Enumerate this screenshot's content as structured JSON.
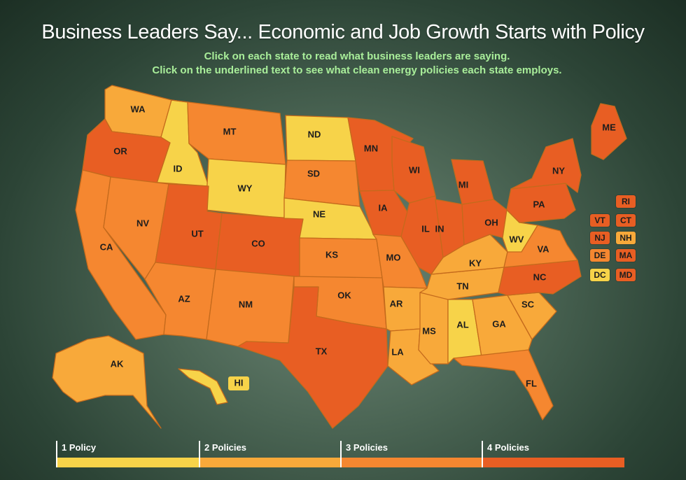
{
  "title": "Business Leaders Say... Economic and Job Growth Starts with Policy",
  "subtitle_1": "Click on each state to read what business leaders are saying.",
  "subtitle_2": "Click on the underlined text to see what clean energy policies each state employs.",
  "colors": {
    "1": "#f7d349",
    "2": "#f8a93a",
    "3": "#f58730",
    "4": "#e85e23"
  },
  "legend": [
    {
      "label": "1 Policy",
      "level": 1
    },
    {
      "label": "2 Policies",
      "level": 2
    },
    {
      "label": "3 Policies",
      "level": 3
    },
    {
      "label": "4 Policies",
      "level": 4
    }
  ],
  "states": {
    "WA": 2,
    "OR": 4,
    "CA": 3,
    "ID": 1,
    "NV": 3,
    "MT": 3,
    "WY": 1,
    "UT": 4,
    "AZ": 3,
    "CO": 4,
    "NM": 3,
    "ND": 1,
    "SD": 3,
    "NE": 1,
    "KS": 3,
    "OK": 3,
    "TX": 4,
    "MN": 4,
    "IA": 4,
    "MO": 3,
    "AR": 2,
    "LA": 2,
    "WI": 4,
    "IL": 4,
    "MS": 2,
    "AL": 1,
    "TN": 2,
    "KY": 2,
    "IN": 4,
    "OH": 4,
    "MI": 4,
    "GA": 2,
    "FL": 3,
    "SC": 2,
    "NC": 4,
    "VA": 3,
    "WV": 1,
    "PA": 4,
    "NY": 4,
    "ME": 4,
    "AK": 2,
    "HI": 1,
    "VT": 4,
    "NH": 2,
    "RI": 4,
    "CT": 4,
    "NJ": 4,
    "MA": 4,
    "DE": 3,
    "MD": 4,
    "DC": 1
  },
  "small_states": [
    "RI",
    "VT",
    "CT",
    "NJ",
    "NH",
    "DE",
    "MA",
    "DC",
    "MD"
  ]
}
